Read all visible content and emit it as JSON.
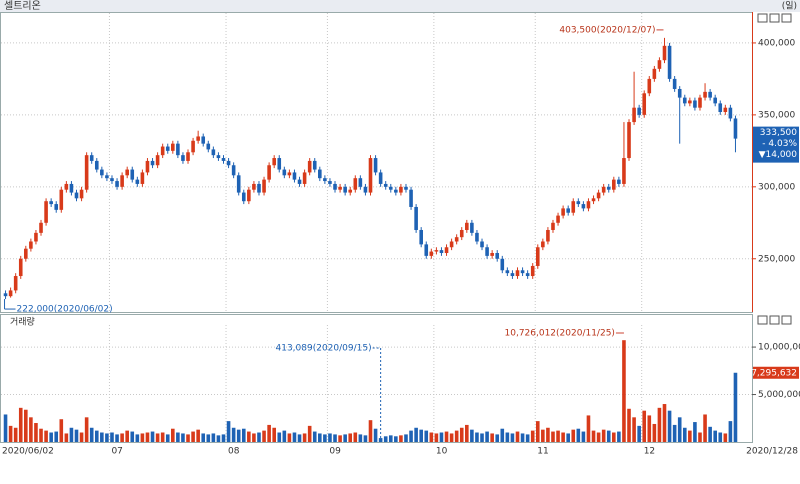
{
  "chart_data": [
    {
      "type": "candlestick",
      "title": "셀트리온",
      "period": "(일)",
      "categories": [
        "2020/06/02",
        null,
        null,
        null,
        null,
        null,
        null,
        null,
        null,
        null,
        null,
        null,
        null,
        null,
        null,
        null,
        null,
        null,
        null,
        null,
        null,
        "07",
        null,
        null,
        null,
        null,
        null,
        null,
        null,
        null,
        null,
        null,
        null,
        null,
        null,
        null,
        null,
        null,
        null,
        null,
        null,
        null,
        null,
        null,
        "08",
        null,
        null,
        null,
        null,
        null,
        null,
        null,
        null,
        null,
        null,
        null,
        null,
        null,
        null,
        null,
        null,
        null,
        null,
        null,
        "09",
        null,
        null,
        null,
        null,
        null,
        null,
        null,
        null,
        null,
        null,
        null,
        null,
        null,
        null,
        null,
        null,
        null,
        null,
        null,
        null,
        "10",
        null,
        null,
        null,
        null,
        null,
        null,
        null,
        null,
        null,
        null,
        null,
        null,
        null,
        null,
        null,
        null,
        null,
        null,
        null,
        "11",
        null,
        null,
        null,
        null,
        null,
        null,
        null,
        null,
        null,
        null,
        null,
        null,
        null,
        null,
        null,
        null,
        null,
        null,
        null,
        null,
        "12",
        null,
        null,
        null,
        null,
        null,
        null,
        null,
        null,
        null,
        null,
        null,
        null,
        null,
        null,
        null,
        null,
        null,
        "2020/12/28"
      ],
      "open": [
        226000,
        224000,
        228000,
        238000,
        250000,
        257000,
        262000,
        268000,
        275000,
        290000,
        288000,
        284000,
        298000,
        302000,
        296000,
        292000,
        298000,
        322000,
        318000,
        312000,
        308000,
        306000,
        304000,
        300000,
        308000,
        312000,
        305000,
        302000,
        310000,
        318000,
        315000,
        322000,
        328000,
        325000,
        330000,
        322000,
        318000,
        324000,
        332000,
        335000,
        330000,
        326000,
        322000,
        320000,
        318000,
        315000,
        308000,
        296000,
        290000,
        298000,
        302000,
        296000,
        305000,
        315000,
        320000,
        312000,
        308000,
        310000,
        305000,
        302000,
        310000,
        318000,
        312000,
        306000,
        304000,
        302000,
        298000,
        300000,
        296000,
        298000,
        306000,
        300000,
        296000,
        320000,
        310000,
        302000,
        300000,
        298000,
        296000,
        300000,
        298000,
        286000,
        270000,
        260000,
        252000,
        255000,
        256000,
        254000,
        258000,
        262000,
        265000,
        270000,
        275000,
        268000,
        262000,
        258000,
        252000,
        254000,
        250000,
        242000,
        240000,
        238000,
        242000,
        240000,
        238000,
        245000,
        258000,
        262000,
        270000,
        275000,
        280000,
        285000,
        282000,
        290000,
        288000,
        285000,
        290000,
        292000,
        296000,
        300000,
        298000,
        305000,
        302000,
        320000,
        345000,
        355000,
        350000,
        365000,
        375000,
        382000,
        388000,
        398000,
        375000,
        368000,
        362000,
        358000,
        360000,
        355000,
        362000,
        366000,
        362000,
        358000,
        352000,
        355000,
        347500
      ],
      "high": [
        228000,
        230000,
        240000,
        252000,
        259000,
        264000,
        270000,
        277000,
        292000,
        292000,
        290000,
        300000,
        304000,
        304000,
        298000,
        300000,
        324000,
        324000,
        320000,
        314000,
        310000,
        308000,
        306000,
        310000,
        314000,
        314000,
        307000,
        312000,
        320000,
        320000,
        324000,
        330000,
        330000,
        332000,
        332000,
        324000,
        326000,
        334000,
        339000,
        337000,
        332000,
        328000,
        324000,
        322000,
        320000,
        317000,
        310000,
        298000,
        300000,
        304000,
        304000,
        307000,
        317000,
        322000,
        322000,
        314000,
        312000,
        312000,
        307000,
        312000,
        320000,
        320000,
        314000,
        308000,
        306000,
        304000,
        302000,
        302000,
        300000,
        308000,
        308000,
        302000,
        322000,
        322000,
        312000,
        304000,
        302000,
        300000,
        302000,
        302000,
        300000,
        288000,
        272000,
        262000,
        257000,
        258000,
        258000,
        260000,
        264000,
        267000,
        272000,
        277000,
        277000,
        270000,
        264000,
        260000,
        256000,
        256000,
        252000,
        244000,
        242000,
        244000,
        244000,
        242000,
        247000,
        260000,
        264000,
        272000,
        277000,
        282000,
        287000,
        287000,
        292000,
        292000,
        290000,
        292000,
        294000,
        298000,
        302000,
        302000,
        307000,
        307000,
        345000,
        347000,
        380000,
        357000,
        367000,
        377000,
        384000,
        390000,
        403500,
        400000,
        377000,
        370000,
        364000,
        362000,
        362000,
        364000,
        372000,
        368000,
        364000,
        360000,
        357000,
        357000,
        349500
      ],
      "low": [
        222000,
        223000,
        226000,
        236000,
        248000,
        255000,
        260000,
        266000,
        273000,
        286000,
        282000,
        282000,
        296000,
        294000,
        290000,
        290000,
        296000,
        316000,
        310000,
        306000,
        304000,
        302000,
        298000,
        298000,
        306000,
        303000,
        300000,
        300000,
        308000,
        313000,
        313000,
        320000,
        323000,
        323000,
        320000,
        316000,
        316000,
        322000,
        330000,
        328000,
        324000,
        320000,
        318000,
        316000,
        313000,
        306000,
        294000,
        288000,
        288000,
        296000,
        294000,
        294000,
        303000,
        313000,
        310000,
        306000,
        306000,
        303000,
        300000,
        300000,
        308000,
        310000,
        304000,
        302000,
        300000,
        296000,
        296000,
        294000,
        294000,
        296000,
        298000,
        294000,
        294000,
        308000,
        300000,
        298000,
        296000,
        294000,
        294000,
        296000,
        284000,
        268000,
        258000,
        250000,
        250000,
        253000,
        252000,
        252000,
        256000,
        260000,
        263000,
        268000,
        266000,
        260000,
        256000,
        250000,
        250000,
        248000,
        240000,
        238000,
        236000,
        236000,
        238000,
        236000,
        236000,
        243000,
        256000,
        260000,
        268000,
        273000,
        278000,
        280000,
        280000,
        286000,
        283000,
        283000,
        288000,
        290000,
        294000,
        296000,
        296000,
        300000,
        300000,
        318000,
        343000,
        348000,
        348000,
        363000,
        373000,
        380000,
        386000,
        373000,
        366000,
        330000,
        356000,
        356000,
        353000,
        353000,
        360000,
        360000,
        356000,
        350000,
        350000,
        345500,
        324000
      ],
      "close": [
        224000,
        228000,
        238000,
        250000,
        257000,
        262000,
        268000,
        275000,
        290000,
        288000,
        284000,
        298000,
        302000,
        296000,
        292000,
        298000,
        322000,
        318000,
        312000,
        308000,
        306000,
        304000,
        300000,
        308000,
        312000,
        305000,
        302000,
        310000,
        318000,
        315000,
        322000,
        328000,
        325000,
        330000,
        322000,
        318000,
        324000,
        332000,
        335000,
        330000,
        326000,
        322000,
        320000,
        318000,
        315000,
        308000,
        296000,
        290000,
        298000,
        302000,
        296000,
        305000,
        315000,
        320000,
        312000,
        308000,
        310000,
        305000,
        302000,
        310000,
        318000,
        312000,
        306000,
        304000,
        302000,
        298000,
        300000,
        296000,
        298000,
        306000,
        300000,
        296000,
        320000,
        310000,
        302000,
        300000,
        298000,
        296000,
        300000,
        298000,
        286000,
        270000,
        260000,
        252000,
        255000,
        256000,
        254000,
        258000,
        262000,
        265000,
        270000,
        275000,
        268000,
        262000,
        258000,
        252000,
        254000,
        250000,
        242000,
        240000,
        238000,
        242000,
        240000,
        238000,
        245000,
        258000,
        262000,
        270000,
        275000,
        280000,
        285000,
        282000,
        290000,
        288000,
        285000,
        290000,
        292000,
        296000,
        300000,
        298000,
        305000,
        302000,
        320000,
        345000,
        355000,
        350000,
        365000,
        375000,
        382000,
        388000,
        398000,
        375000,
        368000,
        362000,
        358000,
        360000,
        355000,
        362000,
        366000,
        362000,
        358000,
        352000,
        355000,
        347500,
        333500
      ],
      "up_color": "#d83a1a",
      "down_color": "#1e62b4",
      "ylim": [
        213000,
        421500
      ],
      "yticks": [
        {
          "value": 250000,
          "label": "250,000"
        },
        {
          "value": 300000,
          "label": "300,000"
        },
        {
          "value": 350000,
          "label": "350,000"
        },
        {
          "value": 400000,
          "label": "400,000"
        }
      ],
      "grid": true,
      "high_label": "403,500(2020/12/07)",
      "low_label": "222,000(2020/06/02)",
      "last_price": "333,500",
      "change_pct": "- 4.03%",
      "change": "▼14,000"
    },
    {
      "type": "bar",
      "title": "거래량",
      "values": [
        2900000,
        1700000,
        1500000,
        3600000,
        3400000,
        2600000,
        2000000,
        1400000,
        1200000,
        1000000,
        1100000,
        2400000,
        900000,
        1500000,
        1300000,
        1000000,
        2600000,
        1500000,
        1200000,
        1000000,
        900000,
        1000000,
        800000,
        900000,
        1200000,
        1100000,
        800000,
        900000,
        1000000,
        1100000,
        900000,
        1000000,
        800000,
        1400000,
        1000000,
        900000,
        800000,
        1100000,
        1300000,
        900000,
        800000,
        900000,
        700000,
        800000,
        2200000,
        1500000,
        1300000,
        1400000,
        1100000,
        900000,
        1000000,
        1200000,
        1800000,
        1500000,
        1000000,
        1200000,
        900000,
        1000000,
        800000,
        900000,
        1700000,
        1100000,
        900000,
        800000,
        900000,
        800000,
        700000,
        800000,
        900000,
        1000000,
        800000,
        700000,
        2300000,
        1400000,
        413089,
        600000,
        700000,
        600000,
        700000,
        800000,
        1200000,
        1500000,
        1300000,
        1200000,
        1000000,
        900000,
        1000000,
        1100000,
        900000,
        1200000,
        1500000,
        1800000,
        1300000,
        1000000,
        900000,
        1100000,
        900000,
        800000,
        1400000,
        1000000,
        900000,
        1100000,
        900000,
        800000,
        1200000,
        2200000,
        1300000,
        1500000,
        1100000,
        1200000,
        1000000,
        900000,
        1300000,
        1400000,
        1100000,
        2800000,
        1200000,
        1000000,
        1300000,
        1200000,
        1000000,
        1100000,
        10726012,
        3500000,
        2600000,
        1700000,
        3300000,
        2800000,
        1900000,
        3600000,
        4000000,
        3300000,
        1800000,
        2600000,
        1500000,
        1200000,
        2100000,
        1000000,
        2900000,
        1600000,
        1200000,
        1000000,
        900000,
        2200000,
        7295632
      ],
      "ylim": [
        0,
        11800000
      ],
      "yticks": [
        {
          "value": 5000000,
          "label": "5,000,000"
        },
        {
          "value": 10000000,
          "label": "10,000,000"
        }
      ],
      "grid": true,
      "max_label": "10,726,012(2020/11/25)",
      "min_label": "413,089(2020/09/15)",
      "last_label": "7,295,632"
    }
  ]
}
